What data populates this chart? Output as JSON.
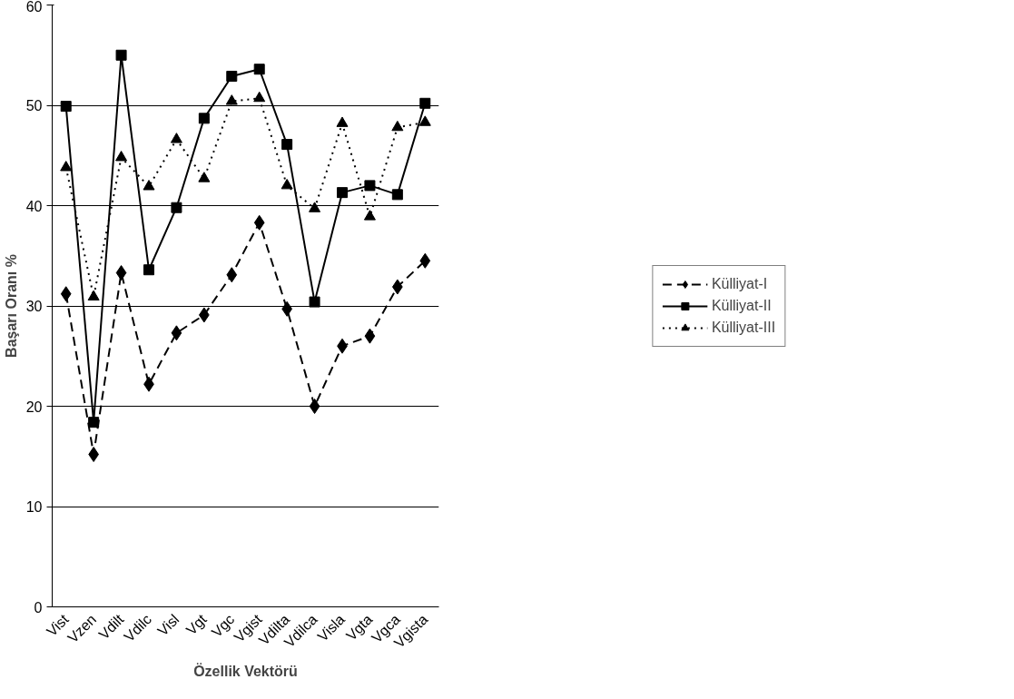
{
  "chart_data": {
    "type": "line",
    "xlabel": "Özellik Vektörü",
    "ylabel": "Başarı Oranı %",
    "categories": [
      "Vist",
      "Vzen",
      "Vdilt",
      "Vdilc",
      "Visl",
      "Vgt",
      "Vgc",
      "Vgist",
      "Vdilta",
      "Vdilca",
      "Visla",
      "Vgta",
      "Vgca",
      "Vgista"
    ],
    "ylim": [
      0,
      60
    ],
    "yticks": [
      0,
      10,
      20,
      30,
      40,
      50,
      60
    ],
    "grid": "y",
    "legend": "right",
    "series": [
      {
        "name": "Külliyat-I",
        "color": "#000000",
        "marker": "diamond",
        "line_style": "dashed",
        "values": [
          31.2,
          15.2,
          33.3,
          22.2,
          27.3,
          29.1,
          33.1,
          38.3,
          29.7,
          20.0,
          26.0,
          27.0,
          31.9,
          34.5
        ]
      },
      {
        "name": "Külliyat-II",
        "color": "#000000",
        "marker": "square",
        "line_style": "solid",
        "values": [
          49.9,
          18.4,
          55.0,
          33.6,
          39.8,
          48.7,
          52.9,
          53.6,
          46.1,
          30.4,
          41.3,
          42.0,
          41.1,
          50.2
        ]
      },
      {
        "name": "Külliyat-III",
        "color": "#000000",
        "marker": "triangle",
        "line_style": "dotted",
        "values": [
          43.8,
          30.9,
          44.8,
          41.9,
          46.6,
          42.7,
          50.4,
          50.7,
          42.0,
          39.7,
          48.2,
          38.9,
          47.8,
          48.3
        ]
      }
    ]
  }
}
